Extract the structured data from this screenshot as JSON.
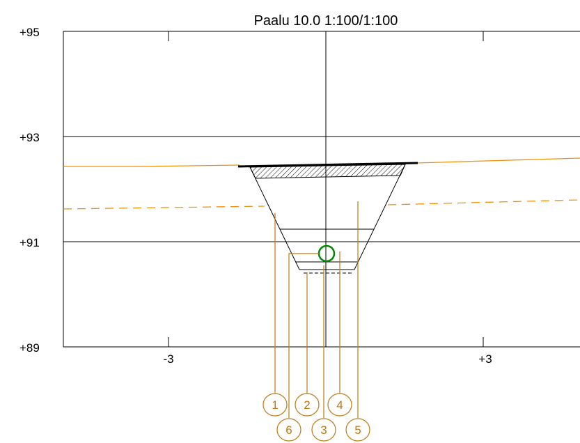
{
  "title": "Paalu 10.0  1:100/1:100",
  "y_axis_labels": [
    "+95",
    "+93",
    "+91",
    "+89"
  ],
  "x_axis_labels": [
    "-3",
    "+3"
  ],
  "callouts": [
    "1",
    "2",
    "4",
    "6",
    "3",
    "5"
  ],
  "colors": {
    "grid": "#000000",
    "ground_line": "#f0900a",
    "callout": "#c07810",
    "marker": "#008800",
    "background": "#ffffff"
  }
}
